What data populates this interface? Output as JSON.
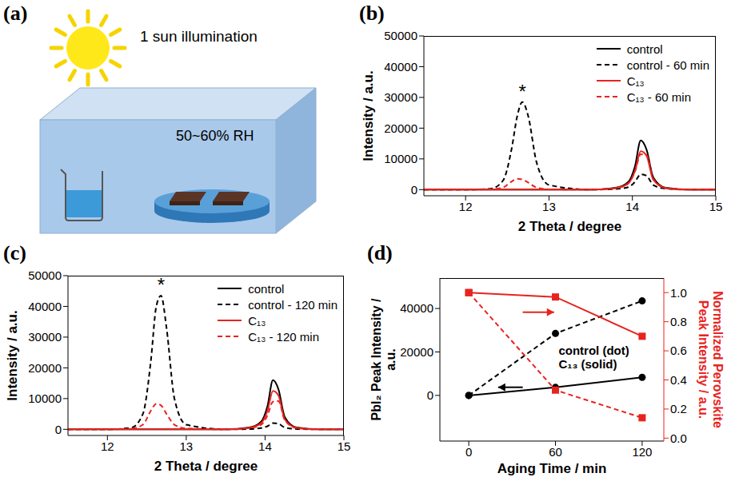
{
  "diagram": {
    "panel": "(a)",
    "texts": [
      "1 sun illumination",
      "50~60% RH"
    ]
  },
  "chart_data": [
    {
      "panel": "(b)",
      "type": "line",
      "x_label": "2 Theta / degree",
      "y_label": "Intensity / a.u.",
      "xlim": [
        11.5,
        15
      ],
      "xticks": [
        12,
        13,
        14,
        15
      ],
      "ylim": [
        -2000,
        50000
      ],
      "yticks": [
        0,
        10000,
        20000,
        30000,
        40000,
        50000
      ],
      "legend": "upper right",
      "annotations": [
        {
          "text": "*",
          "series": "control - 60 min"
        }
      ],
      "x": [
        11.5,
        12.0,
        12.3,
        12.45,
        12.55,
        12.62,
        12.68,
        12.75,
        12.85,
        13.0,
        13.5,
        13.8,
        13.95,
        14.03,
        14.1,
        14.17,
        14.25,
        14.4,
        14.7,
        15.0
      ],
      "series": [
        {
          "name": "control",
          "color": "#000000",
          "line_style": "solid",
          "values": [
            0,
            0,
            0,
            0,
            0,
            0,
            0,
            0,
            0,
            0,
            0,
            600,
            2500,
            7500,
            16000,
            13000,
            4000,
            600,
            0,
            0
          ]
        },
        {
          "name": "control - 60 min",
          "color": "#000000",
          "line_style": "dashed",
          "values": [
            0,
            0,
            300,
            3000,
            13000,
            24000,
            28500,
            24000,
            9000,
            1500,
            0,
            200,
            800,
            2500,
            5000,
            4500,
            1500,
            300,
            0,
            0
          ]
        },
        {
          "name": "C₁₃",
          "color": "#e8231e",
          "line_style": "solid",
          "values": [
            0,
            0,
            0,
            0,
            0,
            0,
            0,
            0,
            0,
            0,
            0,
            500,
            2000,
            6000,
            12500,
            11000,
            3200,
            500,
            0,
            0
          ]
        },
        {
          "name": "C₁₃ - 60 min",
          "color": "#e8231e",
          "line_style": "dashed",
          "values": [
            0,
            0,
            100,
            700,
            2600,
            3500,
            3300,
            2300,
            700,
            100,
            0,
            500,
            2000,
            5800,
            11500,
            11200,
            3500,
            500,
            0,
            0
          ]
        }
      ]
    },
    {
      "panel": "(c)",
      "type": "line",
      "x_label": "2 Theta / degree",
      "y_label": "Intensity / a.u.",
      "xlim": [
        11.5,
        15
      ],
      "xticks": [
        12,
        13,
        14,
        15
      ],
      "ylim": [
        -2000,
        50000
      ],
      "yticks": [
        0,
        10000,
        20000,
        30000,
        40000,
        50000
      ],
      "legend": "upper right",
      "annotations": [
        {
          "text": "*",
          "series": "control - 120 min"
        }
      ],
      "x": [
        11.5,
        12.0,
        12.3,
        12.45,
        12.55,
        12.62,
        12.68,
        12.75,
        12.85,
        13.0,
        13.5,
        13.8,
        13.95,
        14.03,
        14.1,
        14.17,
        14.25,
        14.4,
        14.7,
        15.0
      ],
      "series": [
        {
          "name": "control",
          "color": "#000000",
          "line_style": "solid",
          "values": [
            0,
            0,
            0,
            0,
            0,
            0,
            0,
            0,
            0,
            0,
            0,
            600,
            2500,
            7500,
            16000,
            13000,
            4000,
            600,
            0,
            0
          ]
        },
        {
          "name": "control - 120 min",
          "color": "#000000",
          "line_style": "dashed",
          "values": [
            0,
            0,
            500,
            5000,
            22000,
            40000,
            43500,
            33000,
            10000,
            1500,
            0,
            100,
            400,
            1000,
            2000,
            1800,
            600,
            100,
            0,
            0
          ]
        },
        {
          "name": "C₁₃",
          "color": "#e8231e",
          "line_style": "solid",
          "values": [
            0,
            0,
            0,
            0,
            0,
            0,
            0,
            0,
            0,
            0,
            0,
            500,
            2000,
            6000,
            12500,
            11000,
            3200,
            500,
            0,
            0
          ]
        },
        {
          "name": "C₁₃ - 120 min",
          "color": "#e8231e",
          "line_style": "dashed",
          "values": [
            0,
            0,
            200,
            1500,
            6000,
            8300,
            7800,
            5000,
            1500,
            300,
            0,
            400,
            1500,
            4500,
            9000,
            9200,
            3000,
            400,
            0,
            0
          ]
        }
      ]
    },
    {
      "panel": "(d)",
      "type": "line",
      "x_label": "Aging Time / min",
      "y_label": "PbI₂ Peak Intensity / a.u.",
      "y2_label": "Normalized Perovskite Peak Intensity / a.u.",
      "xlim": [
        -20,
        135
      ],
      "xticks": [
        0,
        60,
        120
      ],
      "ylim": [
        -21000,
        54000
      ],
      "yticks": [
        0,
        20000,
        40000
      ],
      "y2lim": [
        -0.02,
        1.1
      ],
      "y2ticks": [
        {
          "value": 0,
          "label": "0.0"
        },
        0.2,
        0.4,
        0.6,
        0.8,
        {
          "value": 1,
          "label": "1.0"
        }
      ],
      "annotations": [
        "control (dot)",
        "C₁₃ (solid)"
      ],
      "x": [
        0,
        60,
        120
      ],
      "series": [
        {
          "name": "control",
          "color": "#000000",
          "line_style": "dashed",
          "marker": "circle",
          "values": [
            0,
            28500,
            43500
          ]
        },
        {
          "name": "C₁₃",
          "color": "#000000",
          "line_style": "solid",
          "marker": "circle",
          "values": [
            0,
            3700,
            8300
          ]
        },
        {
          "name": "control",
          "color": "#e8231e",
          "line_style": "dashed",
          "marker": "square",
          "axis": "y2",
          "values": [
            1,
            0.33,
            0.14
          ]
        },
        {
          "name": "C₁₃",
          "color": "#e8231e",
          "line_style": "solid",
          "marker": "square",
          "axis": "y2",
          "values": [
            1,
            0.97,
            0.7
          ]
        }
      ]
    }
  ]
}
